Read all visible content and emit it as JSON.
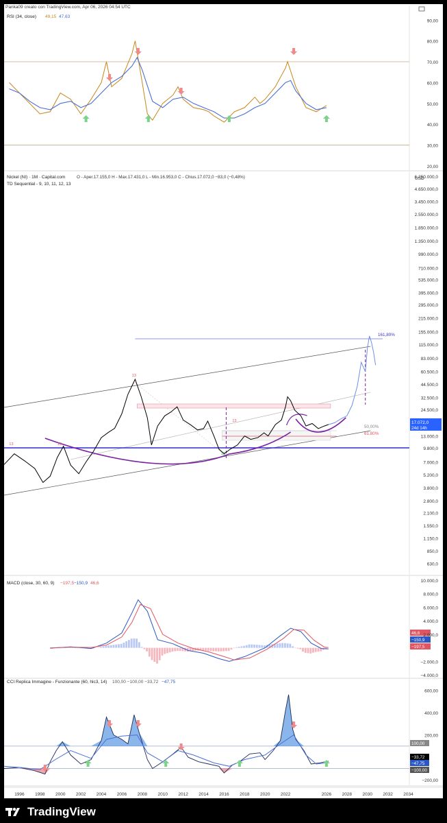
{
  "header": {
    "created_by": "Panka09 creato con TradingView.com, Apr 06, 2026 04:54 UTC",
    "branding": "TradingView"
  },
  "colors": {
    "price_line": "#000000",
    "rsi_line": "#c8851a",
    "rsi_ma": "#4a6fd6",
    "macd_line": "#2a56c6",
    "signal_line": "#e05561",
    "hist_pos": "#b7c8f5",
    "hist_neg": "#f5b7bd",
    "arrow_up": "#7bd389",
    "arrow_down": "#f08a8a",
    "h_level": "#2f2bd6",
    "curve": "#7a1fa2",
    "projection": "#6b8ee8",
    "cci_fill": "#4c8fe0"
  },
  "chart_data": [
    {
      "type": "line",
      "panel": "rsi",
      "legend": {
        "name": "RSI (34, close)",
        "value": "49,15",
        "ma_value": "47,63"
      },
      "yticks": [
        "90,00",
        "80,00",
        "70,00",
        "60,00",
        "50,00",
        "40,00",
        "30,00",
        "20,00"
      ],
      "ylim": [
        18,
        97
      ],
      "levels": [
        70,
        30
      ],
      "series": [
        {
          "name": "RSI",
          "x": [
            1995.0,
            1996.0,
            1997.0,
            1998.0,
            1999.0,
            2000.0,
            2001.0,
            2002.0,
            2003.0,
            2004.0,
            2004.5,
            2005.0,
            2006.0,
            2007.0,
            2007.3,
            2008.0,
            2008.5,
            2009.0,
            2010.0,
            2011.0,
            2011.5,
            2012.0,
            2013.0,
            2014.0,
            2014.5,
            2015.0,
            2016.0,
            2017.0,
            2018.0,
            2019.0,
            2019.5,
            2020.0,
            2021.0,
            2022.0,
            2022.2,
            2023.0,
            2024.0,
            2025.0,
            2026.0
          ],
          "y": [
            60,
            55,
            50,
            45,
            46,
            55,
            52,
            45,
            52,
            60,
            70,
            58,
            62,
            74,
            80,
            60,
            45,
            42,
            50,
            54,
            58,
            52,
            48,
            47,
            46,
            44,
            41,
            46,
            48,
            53,
            50,
            52,
            58,
            67,
            70,
            58,
            48,
            46,
            49
          ]
        },
        {
          "name": "MA",
          "x": [
            1995.0,
            1996.0,
            1997.0,
            1998.0,
            1999.0,
            2000.0,
            2001.0,
            2002.0,
            2003.0,
            2004.0,
            2005.0,
            2006.0,
            2007.0,
            2007.5,
            2008.0,
            2009.0,
            2010.0,
            2011.0,
            2012.0,
            2013.0,
            2014.0,
            2015.0,
            2016.0,
            2017.0,
            2018.0,
            2019.0,
            2020.0,
            2021.0,
            2022.0,
            2022.5,
            2023.0,
            2024.0,
            2025.0,
            2026.0
          ],
          "y": [
            57,
            55,
            51,
            48,
            47,
            50,
            51,
            48,
            50,
            55,
            60,
            63,
            68,
            72,
            66,
            51,
            48,
            52,
            53,
            50,
            48,
            46,
            43,
            43,
            45,
            48,
            50,
            55,
            60,
            61,
            56,
            50,
            47,
            48
          ]
        }
      ],
      "signals_up": [
        2002.5,
        2008.6,
        2016.5,
        2026.0
      ],
      "signals_down": [
        2004.8,
        2007.6,
        2011.8,
        2022.8
      ]
    },
    {
      "type": "line",
      "panel": "price",
      "scale": "log",
      "legend": {
        "name": "Nickel (NI) · 1M · Capital.com",
        "ohlc": "O - Aper.17.155,0  H - Max.17.431,0  L - Min.16.953,0  C - Chius.17.072,0  −83,0 (−0,48%)"
      },
      "sub_legend": "TD Sequential - 9, 10, 11, 12, 13",
      "currency": "USD",
      "yticks": [
        "6.250.000,0",
        "4.650.000,0",
        "3.450.000,0",
        "2.550.000,0",
        "1.850.000,0",
        "1.350.000,0",
        "990.000,0",
        "710.000,0",
        "535.000,0",
        "395.000,0",
        "295.000,0",
        "215.000,0",
        "155.000,0",
        "115.000,0",
        "83.000,0",
        "60.500,0",
        "44.500,0",
        "32.500,0",
        "24.500,0",
        "13.000,0",
        "9.800,0",
        "7.000,0",
        "5.200,0",
        "3.800,0",
        "2.800,0",
        "2.100,0",
        "1.550,0",
        "1.150,0",
        "850,0",
        "630,0"
      ],
      "ylim": [
        480,
        7000000
      ],
      "last_price": "17.072,0",
      "countdown": "24d 14h",
      "fib_labels": [
        "161,80%",
        "50,00%",
        "61,80%"
      ],
      "h_level": 9800,
      "td_labels": [
        "13",
        "13",
        "13",
        "13",
        "13"
      ],
      "x": [
        1994.5,
        1995.5,
        1996.5,
        1997.5,
        1998.3,
        1999.0,
        1999.7,
        2000.3,
        2001.0,
        2001.8,
        2002.5,
        2003.2,
        2004.0,
        2004.7,
        2005.3,
        2006.0,
        2006.6,
        2007.3,
        2007.9,
        2008.5,
        2008.9,
        2009.5,
        2010.2,
        2010.8,
        2011.4,
        2012.0,
        2012.7,
        2013.4,
        2014.0,
        2014.4,
        2015.0,
        2015.5,
        2016.0,
        2016.6,
        2017.3,
        2018.0,
        2018.6,
        2019.3,
        2019.9,
        2020.3,
        2021.0,
        2021.6,
        2022.0,
        2022.2,
        2022.5,
        2022.9,
        2023.5,
        2024.0,
        2024.6,
        2025.2,
        2025.8,
        2026.2
      ],
      "y": [
        6600,
        8500,
        7200,
        6000,
        4300,
        5000,
        7800,
        10200,
        6500,
        5300,
        7000,
        8900,
        12500,
        14200,
        15600,
        22000,
        35000,
        50000,
        33000,
        20000,
        10500,
        16500,
        21000,
        23000,
        26000,
        19000,
        17000,
        15000,
        15500,
        18500,
        13000,
        9500,
        8500,
        9500,
        10500,
        13000,
        12000,
        12500,
        14000,
        13000,
        17000,
        19000,
        26000,
        33000,
        30000,
        24000,
        21000,
        16500,
        17500,
        15500,
        16500,
        17072
      ],
      "projection": {
        "x": [
          2026.2,
          2026.8,
          2027.4,
          2028.0,
          2028.5,
          2029.0,
          2029.4,
          2029.8,
          2030.0,
          2030.2,
          2030.4,
          2030.6,
          2030.8
        ],
        "y": [
          17072,
          17800,
          19500,
          21000,
          27000,
          42000,
          75000,
          60000,
          105000,
          140000,
          120000,
          95000,
          70000
        ]
      }
    },
    {
      "type": "line",
      "panel": "macd",
      "legend": {
        "name": "MACD (close, 30, 60, 9)",
        "hist": "−197,5",
        "macd": "−150,9",
        "signal": "46,6"
      },
      "yticks": [
        "10.000,0",
        "8.000,0",
        "6.000,0",
        "4.000,0",
        "2.000,0",
        "−2.000,0",
        "−4.000,0"
      ],
      "ylim": [
        -4400,
        10600
      ],
      "value_badges": [
        "46,6",
        "−150,9",
        "−197,5"
      ],
      "series": [
        {
          "name": "MACD",
          "x": [
            1999.0,
            2001.0,
            2003.0,
            2004.5,
            2006.0,
            2007.0,
            2007.6,
            2008.5,
            2009.5,
            2011.0,
            2012.5,
            2014.0,
            2015.5,
            2016.5,
            2018.0,
            2020.0,
            2021.5,
            2022.5,
            2023.5,
            2024.5,
            2025.5,
            2026.2
          ],
          "y": [
            -50,
            150,
            -100,
            700,
            2200,
            5200,
            7100,
            5400,
            1200,
            600,
            -400,
            -800,
            -1600,
            -2000,
            -1300,
            0,
            1800,
            2900,
            2400,
            700,
            -100,
            -150
          ]
        },
        {
          "name": "Signal",
          "x": [
            1999.0,
            2001.0,
            2003.0,
            2004.5,
            2006.0,
            2007.0,
            2007.8,
            2008.8,
            2010.0,
            2011.5,
            2013.0,
            2014.5,
            2016.0,
            2017.0,
            2018.5,
            2020.2,
            2021.8,
            2022.8,
            2023.8,
            2024.8,
            2025.8,
            2026.2
          ],
          "y": [
            0,
            100,
            50,
            400,
            1600,
            3800,
            6400,
            5800,
            2000,
            700,
            -100,
            -600,
            -1300,
            -1800,
            -1500,
            -200,
            1400,
            2700,
            2600,
            1100,
            100,
            46.6
          ]
        }
      ]
    },
    {
      "type": "area",
      "panel": "cci",
      "legend": {
        "name": "CCI Replica Immagine - Funzionante (60, hlc3, 14)",
        "values": "100,00  −100,00  −33,72",
        "value2": "−47,75"
      },
      "yticks": [
        "600,00",
        "400,00",
        "200,00",
        "−200,00"
      ],
      "ylim": [
        -250,
        700
      ],
      "levels": [
        100,
        -100
      ],
      "value_badges": [
        "100,00",
        "−33,72",
        "−47,75",
        "−100,00"
      ],
      "series": [
        {
          "name": "CCI",
          "x": [
            1994.5,
            1996.0,
            1997.5,
            1998.5,
            1999.0,
            1999.6,
            2000.2,
            2001.0,
            2002.0,
            2003.0,
            2004.0,
            2004.5,
            2005.2,
            2006.0,
            2006.6,
            2007.2,
            2007.7,
            2008.5,
            2009.0,
            2010.0,
            2011.0,
            2011.8,
            2012.5,
            2013.5,
            2014.5,
            2015.5,
            2016.0,
            2016.8,
            2017.5,
            2018.5,
            2019.5,
            2020.0,
            2020.8,
            2021.5,
            2022.0,
            2022.3,
            2022.7,
            2023.0,
            2023.8,
            2024.5,
            2025.3,
            2026.2
          ],
          "y": [
            -100,
            -90,
            -120,
            -150,
            -40,
            60,
            140,
            20,
            -60,
            -20,
            150,
            360,
            200,
            160,
            120,
            380,
            220,
            -20,
            -100,
            -40,
            30,
            90,
            0,
            -40,
            -60,
            -80,
            -140,
            -70,
            -40,
            30,
            40,
            -20,
            60,
            150,
            420,
            560,
            250,
            160,
            60,
            -60,
            -50,
            -34
          ]
        },
        {
          "name": "Smooth",
          "x": [
            1994.5,
            1996.0,
            1998.0,
            1999.5,
            2001.0,
            2003.0,
            2004.5,
            2006.0,
            2007.5,
            2008.5,
            2010.0,
            2011.5,
            2013.0,
            2015.0,
            2016.5,
            2018.0,
            2020.0,
            2021.5,
            2022.8,
            2024.0,
            2025.0,
            2026.2
          ],
          "y": [
            -80,
            -90,
            -110,
            -20,
            60,
            -10,
            160,
            190,
            200,
            40,
            -40,
            60,
            20,
            -50,
            -80,
            -20,
            20,
            120,
            200,
            20,
            -60,
            -48
          ]
        }
      ],
      "signals_up": [
        2002.7,
        2010.3,
        2017.5,
        2026.0
      ],
      "signals_down": [
        2004.8,
        2007.6,
        2011.8,
        2022.8
      ]
    }
  ],
  "x_axis": {
    "ticks": [
      "1996",
      "1998",
      "2000",
      "2002",
      "2004",
      "2006",
      "2008",
      "2010",
      "2012",
      "2014",
      "2016",
      "2018",
      "2020",
      "2022",
      "2026",
      "2028",
      "2030",
      "2032",
      "2034"
    ]
  }
}
